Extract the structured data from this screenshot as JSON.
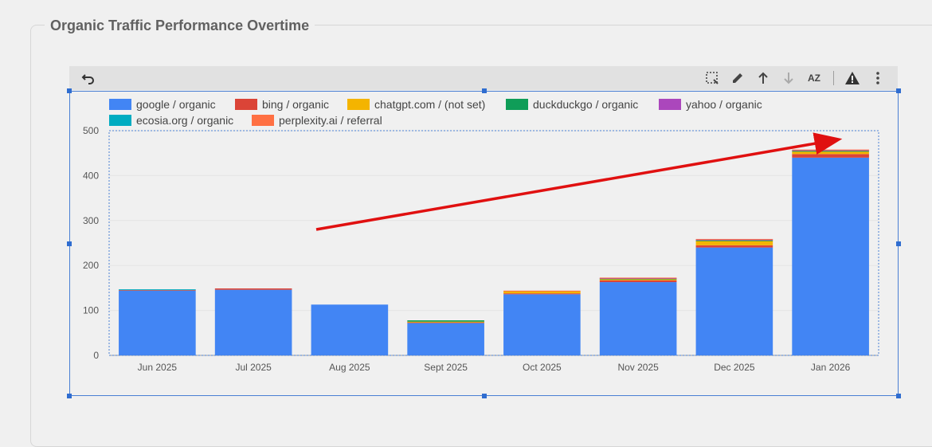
{
  "section_title": "Organic Traffic Performance Overtime",
  "toolbar": {
    "icons": [
      "undo-icon",
      "select-icon",
      "pencil-icon",
      "sort-ascending-icon",
      "sort-descending-icon",
      "sort-az-icon",
      "warning-icon",
      "more-vert-icon"
    ],
    "sort_label": "AZ"
  },
  "colors": {
    "google": "#4285f4",
    "bing": "#db4437",
    "chatgpt": "#f4b400",
    "duckduckgo": "#0f9d58",
    "yahoo": "#ab47bc",
    "ecosia": "#00acc1",
    "perplexity": "#ff7043",
    "arrow": "#e01010"
  },
  "chart_data": {
    "type": "bar",
    "stacked": true,
    "categories": [
      "Jun 2025",
      "Jul 2025",
      "Aug 2025",
      "Sept 2025",
      "Oct 2025",
      "Nov 2025",
      "Dec 2025",
      "Jan 2026"
    ],
    "series": [
      {
        "name": "google / organic",
        "color": "#4285f4",
        "values": [
          144,
          146,
          113,
          72,
          136,
          163,
          240,
          440
        ]
      },
      {
        "name": "bing / organic",
        "color": "#db4437",
        "values": [
          2,
          3,
          0,
          2,
          2,
          4,
          5,
          8
        ]
      },
      {
        "name": "chatgpt.com / (not set)",
        "color": "#f4b400",
        "values": [
          0,
          0,
          0,
          1,
          5,
          3,
          10,
          6
        ]
      },
      {
        "name": "duckduckgo / organic",
        "color": "#0f9d58",
        "values": [
          0,
          0,
          0,
          3,
          0,
          1,
          1,
          1
        ]
      },
      {
        "name": "yahoo / organic",
        "color": "#ab47bc",
        "values": [
          0,
          0,
          0,
          0,
          0,
          1,
          2,
          2
        ]
      },
      {
        "name": "ecosia.org / organic",
        "color": "#00acc1",
        "values": [
          1,
          0,
          0,
          0,
          0,
          0,
          0,
          0
        ]
      },
      {
        "name": "perplexity.ai / referral",
        "color": "#ff7043",
        "values": [
          0,
          0,
          0,
          0,
          1,
          1,
          1,
          1
        ]
      }
    ],
    "yticks": [
      0,
      100,
      200,
      300,
      400,
      500
    ],
    "ylim": [
      0,
      500
    ],
    "legend_position": "top",
    "grid": true,
    "annotation": "red upward trend arrow from Aug 2025 to Jan 2026"
  }
}
